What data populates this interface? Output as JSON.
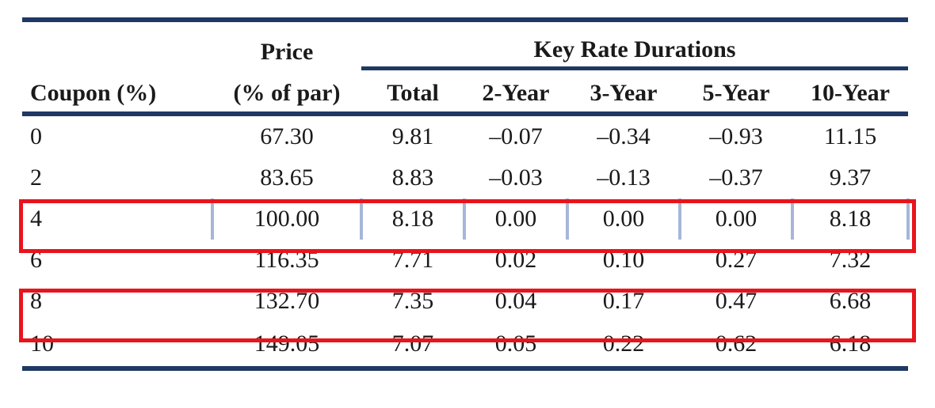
{
  "table": {
    "headers": {
      "coupon": "Coupon (%)",
      "price_line1": "Price",
      "price_line2": "(% of par)",
      "group": "Key Rate Durations",
      "total": "Total",
      "k2": "2-Year",
      "k3": "3-Year",
      "k5": "5-Year",
      "k10": "10-Year"
    },
    "rows": [
      {
        "coupon": "0",
        "price": "67.30",
        "total": "9.81",
        "k2": "–0.07",
        "k3": "–0.34",
        "k5": "–0.93",
        "k10": "11.15"
      },
      {
        "coupon": "2",
        "price": "83.65",
        "total": "8.83",
        "k2": "–0.03",
        "k3": "–0.13",
        "k5": "–0.37",
        "k10": "9.37"
      },
      {
        "coupon": "4",
        "price": "100.00",
        "total": "8.18",
        "k2": "0.00",
        "k3": "0.00",
        "k5": "0.00",
        "k10": "8.18"
      },
      {
        "coupon": "6",
        "price": "116.35",
        "total": "7.71",
        "k2": "0.02",
        "k3": "0.10",
        "k5": "0.27",
        "k10": "7.32"
      },
      {
        "coupon": "8",
        "price": "132.70",
        "total": "7.35",
        "k2": "0.04",
        "k3": "0.17",
        "k5": "0.47",
        "k10": "6.68"
      },
      {
        "coupon": "10",
        "price": "149.05",
        "total": "7.07",
        "k2": "0.05",
        "k3": "0.22",
        "k5": "0.62",
        "k10": "6.18"
      }
    ]
  },
  "highlight_color": "#e8141c",
  "rule_color": "#1f3864"
}
